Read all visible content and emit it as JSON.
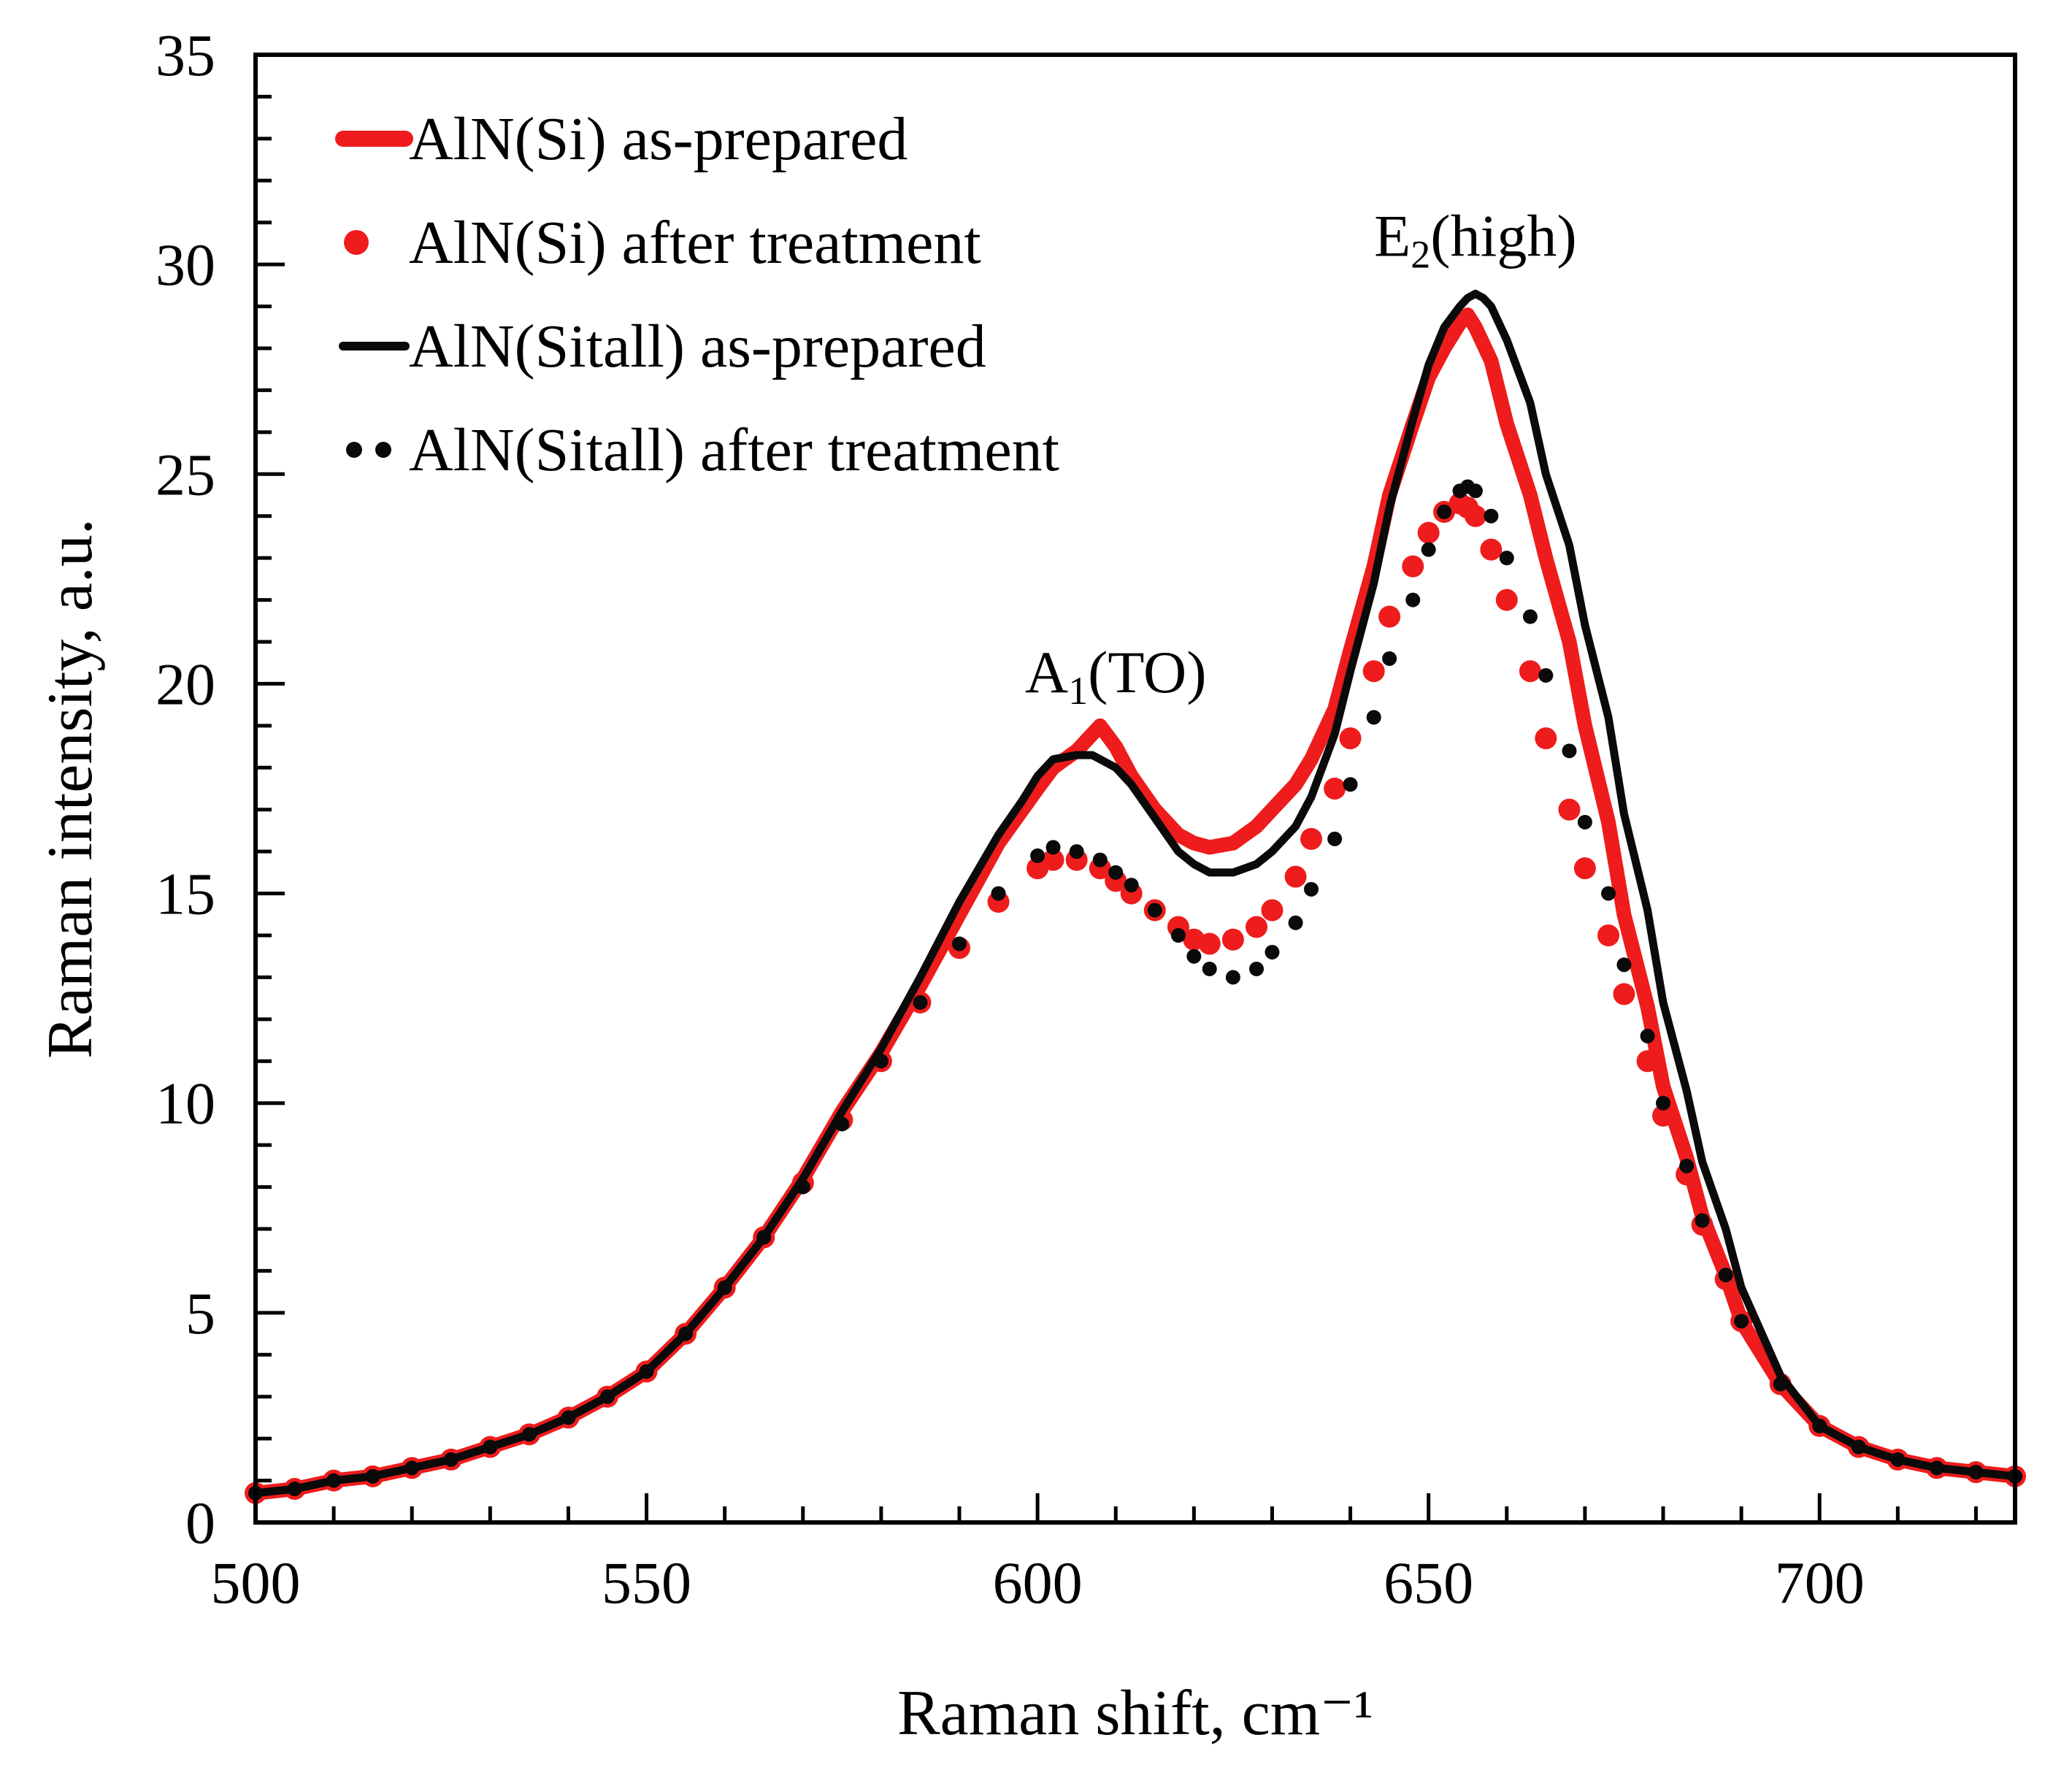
{
  "chart_data": {
    "type": "line",
    "title": "",
    "xlabel": "Raman shift, cm⁻¹",
    "ylabel": "Raman intensity, a.u.",
    "xlim": [
      500,
      725
    ],
    "ylim": [
      0,
      35
    ],
    "xticks": [
      500,
      550,
      600,
      650,
      700
    ],
    "yticks": [
      0,
      5,
      10,
      15,
      20,
      25,
      30,
      35
    ],
    "grid": false,
    "legend_position": "top-left",
    "colors": {
      "red": "#ee1c1c",
      "black": "#0a0a0a"
    },
    "series": [
      {
        "name": "AlN(Si) as-prepared",
        "style": "line",
        "color": "#ee1c1c",
        "x": [
          500,
          505,
          510,
          515,
          520,
          525,
          530,
          535,
          540,
          545,
          550,
          555,
          560,
          565,
          570,
          575,
          580,
          585,
          590,
          595,
          600,
          602,
          605,
          607,
          608,
          610,
          612,
          615,
          618,
          620,
          622,
          625,
          628,
          630,
          633,
          635,
          638,
          640,
          643,
          645,
          648,
          650,
          652,
          654,
          655,
          656,
          658,
          660,
          663,
          665,
          668,
          670,
          673,
          675,
          678,
          680,
          683,
          685,
          688,
          690,
          695,
          700,
          705,
          710,
          715,
          720,
          725
        ],
        "y": [
          0.7,
          0.8,
          1.0,
          1.1,
          1.3,
          1.5,
          1.8,
          2.1,
          2.5,
          3.0,
          3.6,
          4.5,
          5.6,
          6.8,
          8.2,
          9.8,
          11.2,
          12.8,
          14.5,
          16.2,
          17.5,
          18.0,
          18.4,
          18.8,
          19.0,
          18.5,
          17.8,
          17.0,
          16.4,
          16.2,
          16.1,
          16.2,
          16.6,
          17.0,
          17.6,
          18.2,
          19.4,
          20.8,
          22.8,
          24.5,
          26.2,
          27.3,
          28.0,
          28.6,
          28.8,
          28.5,
          27.7,
          26.2,
          24.5,
          23.0,
          21.0,
          19.0,
          16.7,
          14.5,
          12.3,
          10.4,
          8.7,
          7.3,
          5.9,
          4.8,
          3.3,
          2.3,
          1.8,
          1.5,
          1.3,
          1.2,
          1.1
        ]
      },
      {
        "name": "AlN(Si) after treatment",
        "style": "markers",
        "color": "#ee1c1c",
        "x": [
          500,
          505,
          510,
          515,
          520,
          525,
          530,
          535,
          540,
          545,
          550,
          555,
          560,
          565,
          570,
          575,
          580,
          585,
          590,
          595,
          600,
          602,
          605,
          608,
          610,
          612,
          615,
          618,
          620,
          622,
          625,
          628,
          630,
          633,
          635,
          638,
          640,
          643,
          645,
          648,
          650,
          652,
          654,
          655,
          656,
          658,
          660,
          663,
          665,
          668,
          670,
          673,
          675,
          678,
          680,
          683,
          685,
          688,
          690,
          695,
          700,
          705,
          710,
          715,
          720,
          725
        ],
        "y": [
          0.7,
          0.8,
          1.0,
          1.1,
          1.3,
          1.5,
          1.8,
          2.1,
          2.5,
          3.0,
          3.6,
          4.5,
          5.6,
          6.8,
          8.1,
          9.6,
          11.0,
          12.4,
          13.7,
          14.8,
          15.6,
          15.8,
          15.8,
          15.6,
          15.3,
          15.0,
          14.6,
          14.2,
          13.9,
          13.8,
          13.9,
          14.2,
          14.6,
          15.4,
          16.3,
          17.5,
          18.7,
          20.3,
          21.6,
          22.8,
          23.6,
          24.1,
          24.3,
          24.2,
          24.0,
          23.2,
          22.0,
          20.3,
          18.7,
          17.0,
          15.6,
          14.0,
          12.6,
          11.0,
          9.7,
          8.3,
          7.1,
          5.8,
          4.8,
          3.3,
          2.3,
          1.8,
          1.5,
          1.3,
          1.2,
          1.1
        ]
      },
      {
        "name": "AlN(Sitall) as-prepared",
        "style": "line",
        "color": "#0a0a0a",
        "x": [
          500,
          505,
          510,
          515,
          520,
          525,
          530,
          535,
          540,
          545,
          550,
          555,
          560,
          565,
          570,
          575,
          580,
          585,
          590,
          595,
          598,
          600,
          602,
          605,
          607,
          608,
          610,
          612,
          615,
          618,
          620,
          622,
          625,
          628,
          630,
          633,
          635,
          638,
          640,
          643,
          645,
          648,
          650,
          652,
          654,
          655,
          656,
          657,
          658,
          660,
          663,
          665,
          668,
          670,
          673,
          675,
          678,
          680,
          683,
          685,
          688,
          690,
          695,
          700,
          705,
          710,
          715,
          720,
          725
        ],
        "y": [
          0.7,
          0.8,
          1.0,
          1.1,
          1.3,
          1.5,
          1.8,
          2.1,
          2.5,
          3.0,
          3.6,
          4.5,
          5.6,
          6.8,
          8.2,
          9.8,
          11.3,
          13.0,
          14.8,
          16.4,
          17.2,
          17.8,
          18.2,
          18.3,
          18.3,
          18.2,
          18.0,
          17.6,
          16.8,
          16.0,
          15.7,
          15.5,
          15.5,
          15.7,
          16.0,
          16.6,
          17.3,
          18.8,
          20.3,
          22.4,
          24.2,
          26.3,
          27.6,
          28.5,
          29.0,
          29.2,
          29.3,
          29.2,
          29.0,
          28.2,
          26.7,
          25.0,
          23.3,
          21.4,
          19.2,
          16.9,
          14.6,
          12.4,
          10.3,
          8.6,
          7.0,
          5.6,
          3.5,
          2.3,
          1.8,
          1.5,
          1.3,
          1.2,
          1.1
        ]
      },
      {
        "name": "AlN(Sitall) after treatment",
        "style": "markers",
        "color": "#0a0a0a",
        "x": [
          500,
          505,
          510,
          515,
          520,
          525,
          530,
          535,
          540,
          545,
          550,
          555,
          560,
          565,
          570,
          575,
          580,
          585,
          590,
          595,
          600,
          602,
          605,
          608,
          610,
          612,
          615,
          618,
          620,
          622,
          625,
          628,
          630,
          633,
          635,
          638,
          640,
          643,
          645,
          648,
          650,
          652,
          654,
          655,
          656,
          658,
          660,
          663,
          665,
          668,
          670,
          673,
          675,
          678,
          680,
          683,
          685,
          688,
          690,
          695,
          700,
          705,
          710,
          715,
          720,
          725
        ],
        "y": [
          0.7,
          0.8,
          1.0,
          1.1,
          1.3,
          1.5,
          1.8,
          2.1,
          2.5,
          3.0,
          3.6,
          4.5,
          5.6,
          6.8,
          8.0,
          9.5,
          11.0,
          12.4,
          13.8,
          15.0,
          15.9,
          16.1,
          16.0,
          15.8,
          15.5,
          15.2,
          14.6,
          14.0,
          13.5,
          13.2,
          13.0,
          13.2,
          13.6,
          14.3,
          15.1,
          16.3,
          17.6,
          19.2,
          20.6,
          22.0,
          23.2,
          24.1,
          24.6,
          24.7,
          24.6,
          24.0,
          23.0,
          21.6,
          20.2,
          18.4,
          16.7,
          15.0,
          13.3,
          11.6,
          10.0,
          8.5,
          7.2,
          5.9,
          4.8,
          3.3,
          2.3,
          1.8,
          1.5,
          1.3,
          1.2,
          1.1
        ]
      }
    ],
    "annotations": [
      {
        "id": "a1",
        "text": "A",
        "sub": "1",
        "suffix": "(TO)",
        "x": 610,
        "y": 19.8
      },
      {
        "id": "e2",
        "text": "E",
        "sub": "2",
        "suffix": "(high)",
        "x": 656,
        "y": 30.2
      }
    ]
  }
}
